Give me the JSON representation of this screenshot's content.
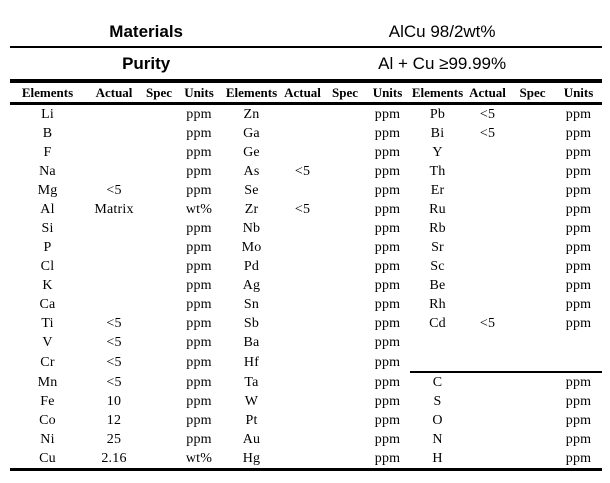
{
  "colors": {
    "text": "#000000",
    "background": "#ffffff",
    "rule": "#000000"
  },
  "header": {
    "materials_label": "Materials",
    "materials_value": "AlCu 98/2wt%",
    "purity_label": "Purity",
    "purity_value": "Al + Cu ≥99.99%"
  },
  "table": {
    "columns": [
      "Elements",
      "Actual",
      "Spec",
      "Units"
    ],
    "groups": [
      {
        "rows": [
          {
            "el": "Li",
            "actual": "",
            "spec": "",
            "units": "ppm"
          },
          {
            "el": "B",
            "actual": "",
            "spec": "",
            "units": "ppm"
          },
          {
            "el": "F",
            "actual": "",
            "spec": "",
            "units": "ppm"
          },
          {
            "el": "Na",
            "actual": "",
            "spec": "",
            "units": "ppm"
          },
          {
            "el": "Mg",
            "actual": "<5",
            "spec": "",
            "units": "ppm"
          },
          {
            "el": "Al",
            "actual": "Matrix",
            "spec": "",
            "units": "wt%"
          },
          {
            "el": "Si",
            "actual": "",
            "spec": "",
            "units": "ppm"
          },
          {
            "el": "P",
            "actual": "",
            "spec": "",
            "units": "ppm"
          },
          {
            "el": "Cl",
            "actual": "",
            "spec": "",
            "units": "ppm"
          },
          {
            "el": "K",
            "actual": "",
            "spec": "",
            "units": "ppm"
          },
          {
            "el": "Ca",
            "actual": "",
            "spec": "",
            "units": "ppm"
          },
          {
            "el": "Ti",
            "actual": "<5",
            "spec": "",
            "units": "ppm"
          },
          {
            "el": "V",
            "actual": "<5",
            "spec": "",
            "units": "ppm"
          },
          {
            "el": "Cr",
            "actual": "<5",
            "spec": "",
            "units": "ppm"
          },
          {
            "el": "Mn",
            "actual": "<5",
            "spec": "",
            "units": "ppm"
          },
          {
            "el": "Fe",
            "actual": "10",
            "spec": "",
            "units": "ppm"
          },
          {
            "el": "Co",
            "actual": "12",
            "spec": "",
            "units": "ppm"
          },
          {
            "el": "Ni",
            "actual": "25",
            "spec": "",
            "units": "ppm"
          },
          {
            "el": "Cu",
            "actual": "2.16",
            "spec": "",
            "units": "wt%"
          }
        ]
      },
      {
        "rows": [
          {
            "el": "Zn",
            "actual": "",
            "spec": "",
            "units": "ppm"
          },
          {
            "el": "Ga",
            "actual": "",
            "spec": "",
            "units": "ppm"
          },
          {
            "el": "Ge",
            "actual": "",
            "spec": "",
            "units": "ppm"
          },
          {
            "el": "As",
            "actual": "<5",
            "spec": "",
            "units": "ppm"
          },
          {
            "el": "Se",
            "actual": "",
            "spec": "",
            "units": "ppm"
          },
          {
            "el": "Zr",
            "actual": "<5",
            "spec": "",
            "units": "ppm"
          },
          {
            "el": "Nb",
            "actual": "",
            "spec": "",
            "units": "ppm"
          },
          {
            "el": "Mo",
            "actual": "",
            "spec": "",
            "units": "ppm"
          },
          {
            "el": "Pd",
            "actual": "",
            "spec": "",
            "units": "ppm"
          },
          {
            "el": "Ag",
            "actual": "",
            "spec": "",
            "units": "ppm"
          },
          {
            "el": "Sn",
            "actual": "",
            "spec": "",
            "units": "ppm"
          },
          {
            "el": "Sb",
            "actual": "",
            "spec": "",
            "units": "ppm"
          },
          {
            "el": "Ba",
            "actual": "",
            "spec": "",
            "units": "ppm"
          },
          {
            "el": "Hf",
            "actual": "",
            "spec": "",
            "units": "ppm"
          },
          {
            "el": "Ta",
            "actual": "",
            "spec": "",
            "units": "ppm"
          },
          {
            "el": "W",
            "actual": "",
            "spec": "",
            "units": "ppm"
          },
          {
            "el": "Pt",
            "actual": "",
            "spec": "",
            "units": "ppm"
          },
          {
            "el": "Au",
            "actual": "",
            "spec": "",
            "units": "ppm"
          },
          {
            "el": "Hg",
            "actual": "",
            "spec": "",
            "units": "ppm"
          }
        ]
      },
      {
        "rows": [
          {
            "el": "Pb",
            "actual": "<5",
            "spec": "",
            "units": "ppm"
          },
          {
            "el": "Bi",
            "actual": "<5",
            "spec": "",
            "units": "ppm"
          },
          {
            "el": "Y",
            "actual": "",
            "spec": "",
            "units": "ppm"
          },
          {
            "el": "Th",
            "actual": "",
            "spec": "",
            "units": "ppm"
          },
          {
            "el": "Er",
            "actual": "",
            "spec": "",
            "units": "ppm"
          },
          {
            "el": "Ru",
            "actual": "",
            "spec": "",
            "units": "ppm"
          },
          {
            "el": "Rb",
            "actual": "",
            "spec": "",
            "units": "ppm"
          },
          {
            "el": "Sr",
            "actual": "",
            "spec": "",
            "units": "ppm"
          },
          {
            "el": "Sc",
            "actual": "",
            "spec": "",
            "units": "ppm"
          },
          {
            "el": "Be",
            "actual": "",
            "spec": "",
            "units": "ppm"
          },
          {
            "el": "Rh",
            "actual": "",
            "spec": "",
            "units": "ppm"
          },
          {
            "el": "Cd",
            "actual": "<5",
            "spec": "",
            "units": "ppm"
          },
          {
            "el": "",
            "actual": "",
            "spec": "",
            "units": ""
          },
          {
            "el": "",
            "actual": "",
            "spec": "",
            "units": ""
          },
          {
            "el": "C",
            "actual": "",
            "spec": "",
            "units": "ppm",
            "divider_above": true
          },
          {
            "el": "S",
            "actual": "",
            "spec": "",
            "units": "ppm"
          },
          {
            "el": "O",
            "actual": "",
            "spec": "",
            "units": "ppm"
          },
          {
            "el": "N",
            "actual": "",
            "spec": "",
            "units": "ppm"
          },
          {
            "el": "H",
            "actual": "",
            "spec": "",
            "units": "ppm"
          }
        ]
      }
    ]
  }
}
